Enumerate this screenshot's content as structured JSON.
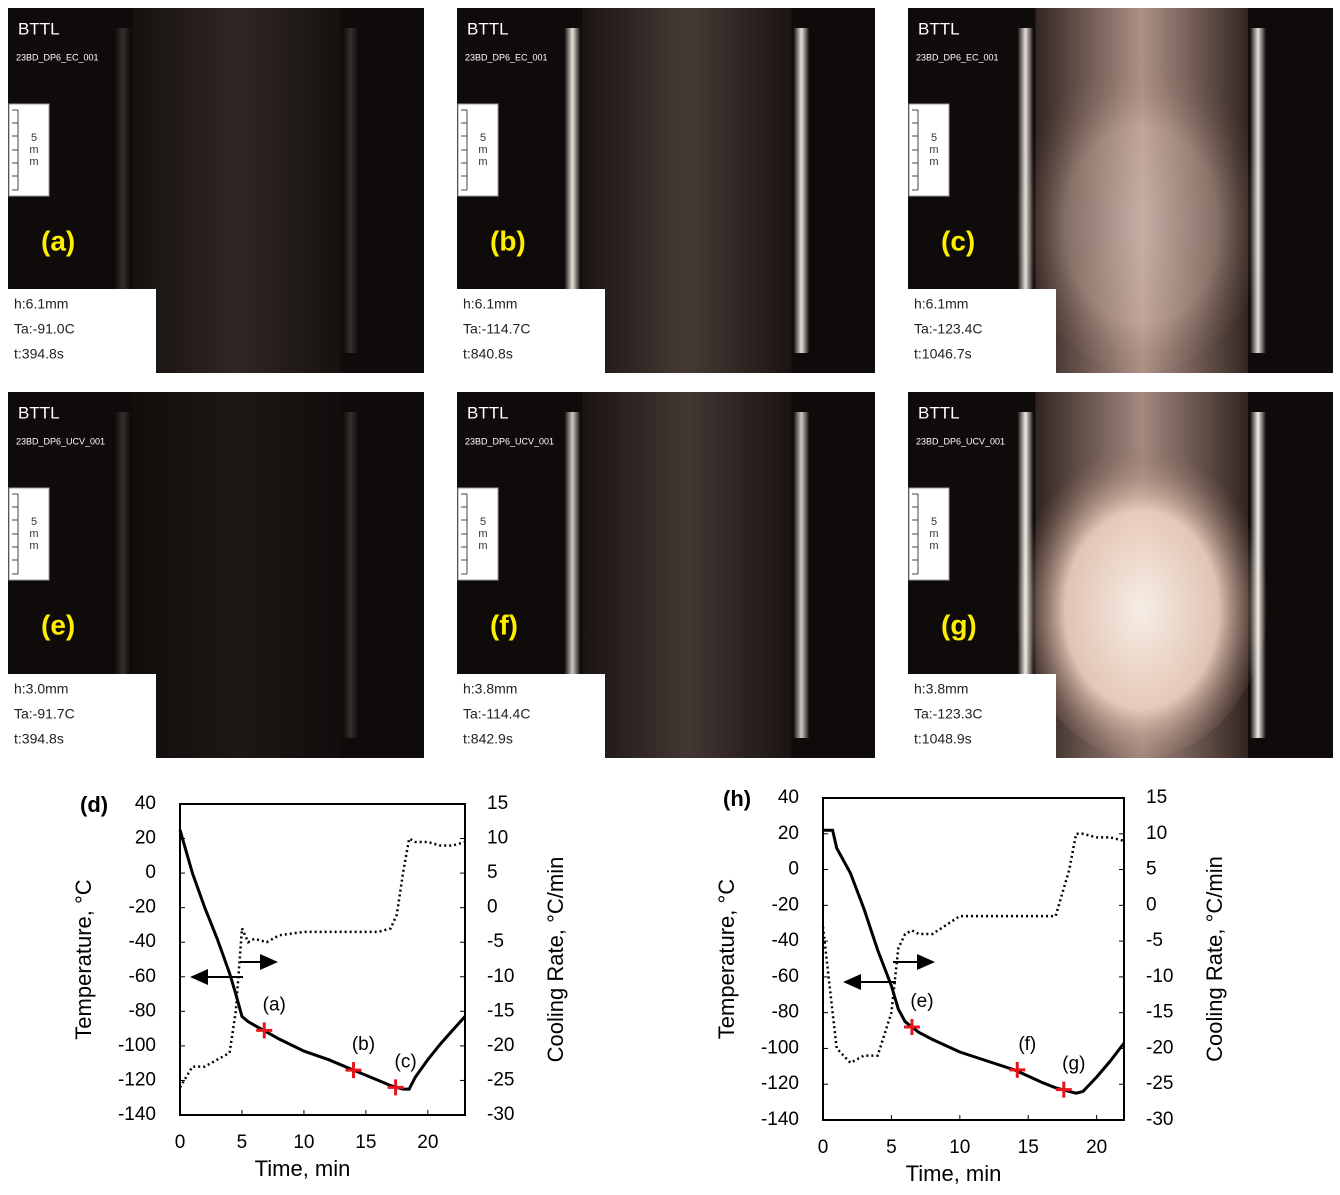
{
  "images": [
    {
      "title": "BTTL",
      "id": "23BD_DP6_EC_001",
      "scale": [
        "5",
        "m",
        "m"
      ],
      "label": "(a)",
      "h": "h:6.1mm",
      "ta": "Ta:-91.0C",
      "t": "t:394.8s"
    },
    {
      "title": "BTTL",
      "id": "23BD_DP6_EC_001",
      "scale": [
        "5",
        "m",
        "m"
      ],
      "label": "(b)",
      "h": "h:6.1mm",
      "ta": "Ta:-114.7C",
      "t": "t:840.8s"
    },
    {
      "title": "BTTL",
      "id": "23BD_DP6_EC_001",
      "scale": [
        "5",
        "m",
        "m"
      ],
      "label": "(c)",
      "h": "h:6.1mm",
      "ta": "Ta:-123.4C",
      "t": "t:1046.7s"
    },
    {
      "title": "BTTL",
      "id": "23BD_DP6_UCV_001",
      "scale": [
        "5",
        "m",
        "m"
      ],
      "label": "(e)",
      "h": "h:3.0mm",
      "ta": "Ta:-91.7C",
      "t": "t:394.8s"
    },
    {
      "title": "BTTL",
      "id": "23BD_DP6_UCV_001",
      "scale": [
        "5",
        "m",
        "m"
      ],
      "label": "(f)",
      "h": "h:3.8mm",
      "ta": "Ta:-114.4C",
      "t": "t:842.9s"
    },
    {
      "title": "BTTL",
      "id": "23BD_DP6_UCV_001",
      "scale": [
        "5",
        "m",
        "m"
      ],
      "label": "(g)",
      "h": "h:3.8mm",
      "ta": "Ta:-123.3C",
      "t": "t:1048.9s"
    }
  ],
  "chart_data": [
    {
      "type": "line",
      "title": "(d)",
      "xlabel": "Time, min",
      "ylabel": "Temperature, °C",
      "y2label": "Cooling Rate, °C/min",
      "xlim": [
        0,
        23
      ],
      "xticks": [
        0,
        5,
        10,
        15,
        20
      ],
      "ylim": [
        -140,
        40
      ],
      "yticks": [
        -140,
        -120,
        -100,
        -80,
        -60,
        -40,
        -20,
        0,
        20,
        40
      ],
      "y2lim": [
        -30,
        15
      ],
      "y2ticks": [
        -30,
        -25,
        -20,
        -15,
        -10,
        -5,
        0,
        5,
        10,
        15
      ],
      "x": [
        0,
        1,
        2,
        3,
        4,
        4.5,
        5,
        5.5,
        6,
        7,
        8,
        10,
        12,
        14,
        16,
        17,
        17.5,
        18,
        18.5,
        19,
        20,
        21,
        22,
        23
      ],
      "series": [
        {
          "color": "#000000",
          "style": "solid",
          "values": [
            25,
            0,
            -20,
            -38,
            -58,
            -70,
            -83,
            -86,
            -88,
            -92,
            -96,
            -103,
            -108,
            -114,
            -120,
            -123,
            -124,
            -125,
            -125,
            -118,
            -108,
            -99,
            -91,
            -83
          ]
        },
        {
          "color": "#000000",
          "style": "dotted",
          "axis": "y2",
          "values": [
            -26,
            -23,
            -23,
            -22,
            -21,
            -15,
            -3,
            -5,
            -4.5,
            -5,
            -4,
            -3.5,
            -3.5,
            -3.5,
            -3.5,
            -3,
            -1,
            5,
            10,
            9.5,
            9.5,
            9,
            9,
            9.5
          ]
        }
      ],
      "annotations": [
        {
          "x": 6.8,
          "y": -91,
          "text": "(a)"
        },
        {
          "x": 14,
          "y": -114,
          "text": "(b)"
        },
        {
          "x": 17.4,
          "y": -124,
          "text": "(c)"
        }
      ],
      "marker_color": "#e8141c"
    },
    {
      "type": "line",
      "title": "(h)",
      "xlabel": "Time, min",
      "ylabel": "Temperature, °C",
      "y2label": "Cooling Rate, °C/min",
      "xlim": [
        0,
        22
      ],
      "xticks": [
        0,
        5,
        10,
        15,
        20
      ],
      "ylim": [
        -140,
        40
      ],
      "yticks": [
        -140,
        -120,
        -100,
        -80,
        -60,
        -40,
        -20,
        0,
        20,
        40
      ],
      "y2lim": [
        -30,
        15
      ],
      "y2ticks": [
        -30,
        -25,
        -20,
        -15,
        -10,
        -5,
        0,
        5,
        10,
        15
      ],
      "x": [
        0,
        0.7,
        1,
        2,
        3,
        4,
        5,
        5.5,
        6,
        6.5,
        7,
        8,
        10,
        12,
        14,
        16,
        17,
        18,
        18.5,
        19,
        20,
        21,
        22
      ],
      "series": [
        {
          "color": "#000000",
          "style": "solid",
          "values": [
            22,
            22,
            12,
            -2,
            -22,
            -45,
            -65,
            -78,
            -85,
            -88,
            -91,
            -95,
            -102,
            -107,
            -112,
            -119,
            -122,
            -124,
            -125,
            -124,
            -116,
            -107,
            -97
          ]
        },
        {
          "color": "#000000",
          "style": "dotted",
          "axis": "y2",
          "values": [
            -3,
            -15,
            -20,
            -22,
            -21,
            -21,
            -15,
            -6,
            -4,
            -3.5,
            -4,
            -4,
            -1.5,
            -1.5,
            -1.5,
            -1.5,
            -1.5,
            5,
            10,
            10,
            9.5,
            9.5,
            9
          ]
        }
      ],
      "annotations": [
        {
          "x": 6.5,
          "y": -88,
          "text": "(e)"
        },
        {
          "x": 14.2,
          "y": -112,
          "text": "(f)"
        },
        {
          "x": 17.6,
          "y": -123,
          "text": "(g)"
        }
      ],
      "marker_color": "#e8141c"
    }
  ]
}
